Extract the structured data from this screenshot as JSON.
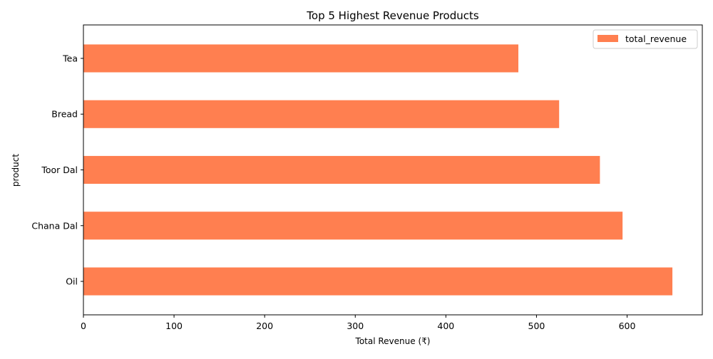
{
  "chart_data": {
    "type": "bar",
    "orientation": "horizontal",
    "title": "Top 5 Highest Revenue Products",
    "xlabel": "Total Revenue (₹)",
    "ylabel": "product",
    "categories": [
      "Oil",
      "Chana Dal",
      "Toor Dal",
      "Bread",
      "Tea"
    ],
    "series": [
      {
        "name": "total_revenue",
        "values": [
          650,
          595,
          570,
          525,
          480
        ],
        "color": "#FF7F50"
      }
    ],
    "xlim": [
      0,
      683
    ],
    "xticks": [
      0,
      100,
      200,
      300,
      400,
      500,
      600
    ],
    "xtick_labels": [
      "0",
      "100",
      "200",
      "300",
      "400",
      "500",
      "600"
    ],
    "grid": false,
    "legend_position": "top-right"
  }
}
